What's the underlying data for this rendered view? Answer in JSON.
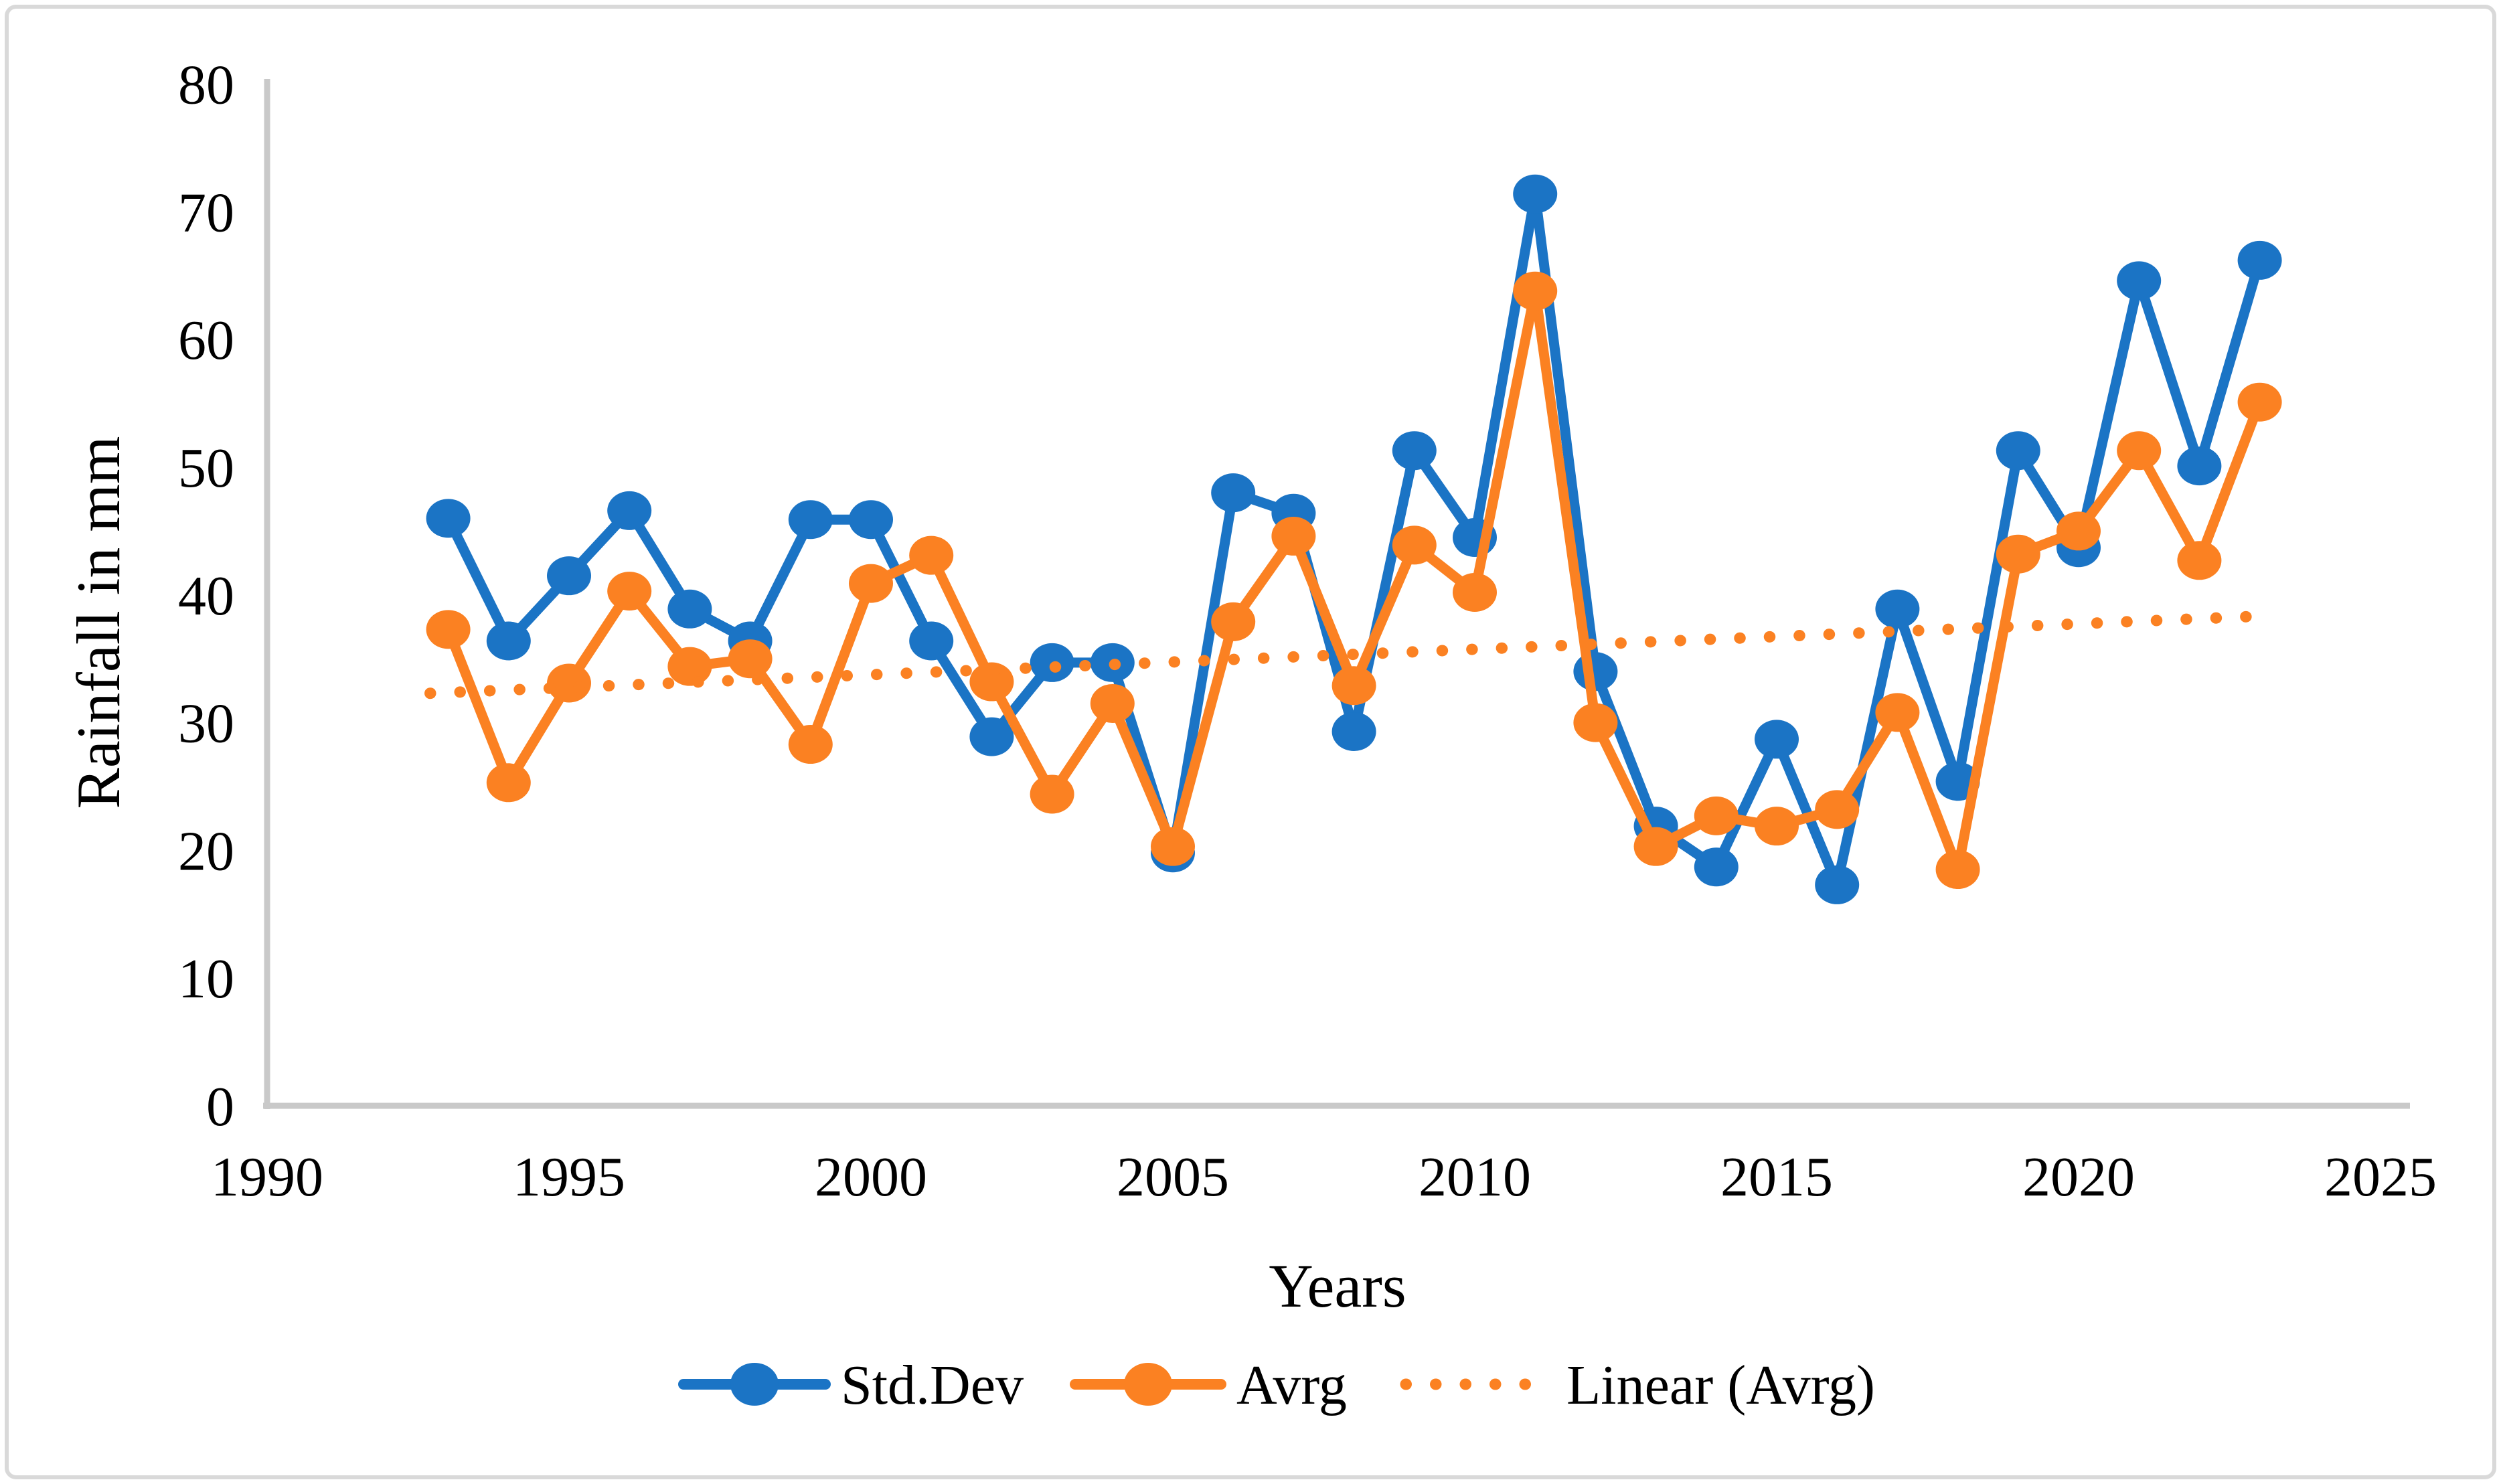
{
  "chart_data": {
    "type": "line",
    "title": "",
    "xlabel": "Years",
    "ylabel": "Rainfall in mm",
    "x_axis": {
      "min": 1990,
      "max": 2025,
      "tick_step": 5,
      "tick_labels": [
        "1990",
        "1995",
        "2000",
        "2005",
        "2010",
        "2015",
        "2020",
        "2025"
      ]
    },
    "y_axis": {
      "min": 0,
      "max": 80,
      "tick_step": 10,
      "tick_labels": [
        "0",
        "10",
        "20",
        "30",
        "40",
        "50",
        "60",
        "70",
        "80"
      ]
    },
    "grid": false,
    "legend_position": "bottom-center",
    "years": [
      1993,
      1994,
      1995,
      1996,
      1997,
      1998,
      1999,
      2000,
      2001,
      2002,
      2003,
      2004,
      2005,
      2006,
      2007,
      2008,
      2009,
      2010,
      2011,
      2012,
      2013,
      2014,
      2015,
      2016,
      2017,
      2018,
      2019,
      2020,
      2021,
      2022,
      2023
    ],
    "series": [
      {
        "name": "Std.Dev",
        "color": "#1B74C5",
        "marker": "circle",
        "values": [
          46.0,
          36.4,
          41.5,
          46.6,
          38.9,
          36.4,
          45.9,
          45.9,
          36.4,
          28.9,
          34.7,
          34.7,
          19.8,
          48.0,
          46.4,
          29.3,
          51.3,
          44.5,
          71.4,
          34.0,
          21.9,
          18.7,
          28.7,
          17.3,
          38.9,
          25.4,
          51.3,
          43.7,
          64.6,
          50.1,
          66.2
        ]
      },
      {
        "name": "Avrg",
        "color": "#FB8122",
        "marker": "circle",
        "values": [
          37.3,
          25.3,
          33.1,
          40.3,
          34.4,
          35.0,
          28.3,
          40.9,
          43.1,
          33.2,
          24.4,
          31.5,
          20.3,
          37.9,
          44.6,
          32.9,
          43.9,
          40.2,
          63.8,
          30.0,
          20.3,
          22.7,
          21.9,
          23.2,
          30.8,
          18.5,
          43.2,
          45.0,
          51.3,
          42.7,
          55.1
        ]
      }
    ],
    "trendline": {
      "name": "Linear (Avrg)",
      "color": "#FB8122",
      "style": "dotted",
      "x_start": 1992.7,
      "v_start": 32.3,
      "x_end": 2022.8,
      "v_end": 38.3
    },
    "legend": [
      {
        "label": "Std.Dev",
        "swatch": "line-marker",
        "color": "#1B74C5"
      },
      {
        "label": "Avrg",
        "swatch": "line-marker",
        "color": "#FB8122"
      },
      {
        "label": "Linear (Avrg)",
        "swatch": "dotted-line",
        "color": "#FB8122"
      }
    ],
    "colors": {
      "std_dev": "#1B74C5",
      "avrg": "#FB8122",
      "axis": "#C9C9C9",
      "frame_border": "#D9D9D9"
    }
  }
}
